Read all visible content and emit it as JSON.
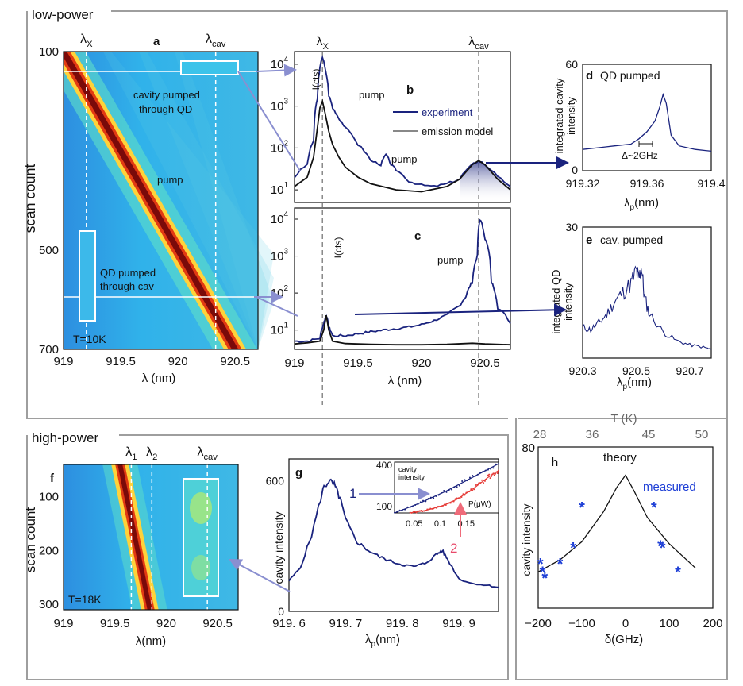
{
  "sections": {
    "low_power": "low-power",
    "high_power": "high-power"
  },
  "colors": {
    "experiment": "#1a237e",
    "model": "#111111",
    "red_series": "#e53935",
    "measured": "#1e3fd6",
    "frame": "#9e9e9e",
    "heat_bg": "#2aa7e6",
    "heat_band": "#7a0a0a",
    "arrow": "#8a8fd0"
  },
  "chart_data": [
    {
      "id": "a",
      "type": "heatmap",
      "panel_letter": "a",
      "xlabel": "λ (nm)",
      "ylabel": "scan count",
      "x_ticks": [
        "919",
        "919.5",
        "920",
        "920.5"
      ],
      "y_ticks": [
        "100",
        "500",
        "700"
      ],
      "xlim": [
        919,
        920.7
      ],
      "ylim": [
        700,
        100
      ],
      "markers": [
        {
          "sym": "λ",
          "sub": "X",
          "x": 919.2
        },
        {
          "sym": "λ",
          "sub": "cav",
          "x": 920.33
        }
      ],
      "annotations": [
        "cavity pumped",
        "through QD",
        "pump",
        "QD pumped",
        "through cav",
        "T=10K"
      ],
      "band": [
        [
          919.0,
          100
        ],
        [
          920.5,
          700
        ]
      ]
    },
    {
      "id": "b",
      "type": "line",
      "panel_letter": "b",
      "yscale": "log",
      "ylabel": "I(cts)",
      "y_ticks": [
        "10",
        "10",
        "10",
        "10"
      ],
      "y_exp": [
        "1",
        "2",
        "3",
        "4"
      ],
      "xlim": [
        919,
        920.7
      ],
      "ylim": [
        5,
        20000
      ],
      "markers": [
        {
          "sym": "λ",
          "sub": "X",
          "x": 919.22
        },
        {
          "sym": "λ",
          "sub": "cav",
          "x": 920.45
        }
      ],
      "annotations": [
        "pump",
        "pump"
      ],
      "legend": [
        "experiment",
        "emission model"
      ],
      "series": [
        {
          "name": "experiment",
          "x": [
            919.0,
            919.1,
            919.15,
            919.18,
            919.2,
            919.22,
            919.24,
            919.27,
            919.3,
            919.35,
            919.4,
            919.5,
            919.6,
            919.68,
            919.72,
            919.76,
            919.8,
            919.9,
            920.0,
            920.1,
            920.2,
            920.3,
            920.4,
            920.45,
            920.5,
            920.6,
            920.7
          ],
          "y": [
            20,
            40,
            150,
            1500,
            8000,
            15000,
            8000,
            1800,
            900,
            500,
            300,
            120,
            50,
            40,
            70,
            40,
            30,
            16,
            13,
            12,
            14,
            18,
            40,
            50,
            40,
            20,
            12
          ]
        },
        {
          "name": "emission model",
          "x": [
            919.0,
            919.1,
            919.15,
            919.18,
            919.2,
            919.22,
            919.24,
            919.27,
            919.3,
            919.35,
            919.4,
            919.5,
            919.6,
            919.8,
            920.0,
            920.2,
            920.3,
            920.4,
            920.45,
            920.5,
            920.6,
            920.7
          ],
          "y": [
            12,
            20,
            60,
            300,
            900,
            1300,
            700,
            250,
            120,
            60,
            35,
            20,
            14,
            10,
            9,
            12,
            18,
            40,
            50,
            40,
            18,
            10
          ]
        }
      ]
    },
    {
      "id": "c",
      "type": "line",
      "panel_letter": "c",
      "yscale": "log",
      "xlabel": "λ (nm)",
      "ylabel": "I(cts)",
      "x_ticks": [
        "919",
        "919.5",
        "920",
        "920.5"
      ],
      "y_ticks": [
        "10",
        "10",
        "10",
        "10"
      ],
      "y_exp": [
        "1",
        "2",
        "3",
        "4"
      ],
      "xlim": [
        919,
        920.7
      ],
      "ylim": [
        3,
        20000
      ],
      "annotations": [
        "pump"
      ],
      "series": [
        {
          "name": "experiment",
          "x": [
            919.0,
            919.1,
            919.2,
            919.23,
            919.25,
            919.27,
            919.3,
            919.4,
            919.5,
            919.6,
            919.7,
            919.8,
            919.9,
            920.0,
            920.1,
            920.2,
            920.3,
            920.35,
            920.4,
            920.44,
            920.46,
            920.5,
            920.55,
            920.6,
            920.7
          ],
          "y": [
            5,
            5,
            6,
            15,
            25,
            12,
            7,
            7,
            8,
            9,
            10,
            11,
            12,
            14,
            18,
            25,
            45,
            80,
            200,
            1000,
            10000,
            3000,
            200,
            40,
            15
          ]
        },
        {
          "name": "emission model",
          "x": [
            919.0,
            919.1,
            919.2,
            919.23,
            919.25,
            919.27,
            919.3,
            919.4,
            919.6,
            919.8,
            920.0,
            920.2,
            920.4,
            920.5,
            920.7
          ],
          "y": [
            4.2,
            4.5,
            5,
            10,
            25,
            10,
            5,
            4.3,
            4.1,
            4.0,
            4.0,
            4.1,
            4.4,
            4.2,
            4.0
          ]
        }
      ]
    },
    {
      "id": "d",
      "type": "line",
      "panel_letter": "d",
      "title": "QD pumped",
      "xlabel": "λ",
      "xlabel_sub": "p",
      "xlabel_unit": "(nm)",
      "ylabel": [
        "integrated cavity",
        "intensity"
      ],
      "x_ticks": [
        "919.32",
        "919.36",
        "919.4"
      ],
      "y_ticks": [
        "0",
        "60"
      ],
      "xlim": [
        919.32,
        919.4
      ],
      "ylim": [
        0,
        60
      ],
      "annotations": [
        "Δ~2GHz"
      ],
      "series": [
        {
          "name": "",
          "x": [
            919.32,
            919.33,
            919.34,
            919.35,
            919.355,
            919.36,
            919.365,
            919.368,
            919.37,
            919.372,
            919.375,
            919.38,
            919.39,
            919.4
          ],
          "y": [
            12,
            13,
            14,
            15,
            18,
            22,
            28,
            36,
            43,
            38,
            20,
            14,
            12,
            11
          ]
        }
      ]
    },
    {
      "id": "e",
      "type": "line",
      "panel_letter": "e",
      "title": "cav. pumped",
      "xlabel": "λ",
      "xlabel_sub": "p",
      "xlabel_unit": "(nm)",
      "ylabel": [
        "integrated QD",
        "intensity"
      ],
      "x_ticks": [
        "920.3",
        "920.5",
        "920.7"
      ],
      "y_ticks": [
        "30"
      ],
      "xlim": [
        920.3,
        920.78
      ],
      "ylim": [
        0,
        30
      ],
      "series": [
        {
          "name": "",
          "x": [
            920.3,
            920.33,
            920.36,
            920.39,
            920.42,
            920.45,
            920.48,
            920.5,
            920.51,
            920.52,
            920.53,
            920.55,
            920.6,
            920.65,
            920.7,
            920.75,
            920.78
          ],
          "y": [
            7,
            6.5,
            8,
            10,
            13,
            15,
            17,
            20,
            18,
            21,
            14,
            10,
            6,
            4,
            3,
            2.5,
            2
          ]
        }
      ]
    },
    {
      "id": "f",
      "type": "heatmap",
      "panel_letter": "f",
      "xlabel": "λ(nm)",
      "ylabel": "scan count",
      "x_ticks": [
        "919",
        "919.5",
        "920",
        "920.5"
      ],
      "y_ticks": [
        "100",
        "200",
        "300"
      ],
      "xlim": [
        919,
        920.7
      ],
      "ylim": [
        310,
        40
      ],
      "markers": [
        {
          "sym": "λ",
          "sub": "1",
          "x": 919.66
        },
        {
          "sym": "λ",
          "sub": "2",
          "x": 919.86
        },
        {
          "sym": "λ",
          "sub": "cav",
          "x": 920.4
        }
      ],
      "annotations": [
        "T=18K"
      ],
      "band": [
        [
          919.55,
          40
        ],
        [
          919.84,
          310
        ]
      ]
    },
    {
      "id": "g",
      "type": "line",
      "panel_letter": "g",
      "xlabel": "λ",
      "xlabel_sub": "p",
      "xlabel_unit": "(nm)",
      "ylabel": "cavity intensity",
      "x_ticks": [
        "919. 6",
        "919. 7",
        "919. 8",
        "919. 9"
      ],
      "y_ticks": [
        "0",
        "600"
      ],
      "xlim": [
        919.6,
        919.97
      ],
      "ylim": [
        0,
        700
      ],
      "series": [
        {
          "name": "",
          "x": [
            919.6,
            919.62,
            919.64,
            919.66,
            919.67,
            919.68,
            919.69,
            919.7,
            919.72,
            919.74,
            919.76,
            919.78,
            919.8,
            919.82,
            919.84,
            919.86,
            919.87,
            919.88,
            919.9,
            919.92,
            919.95,
            919.97
          ],
          "y": [
            140,
            200,
            350,
            560,
            600,
            580,
            520,
            420,
            320,
            280,
            250,
            230,
            215,
            205,
            220,
            260,
            280,
            240,
            150,
            130,
            120,
            110
          ]
        }
      ],
      "inset": {
        "ylabel": [
          "cavity",
          "intensity"
        ],
        "xlabel": "P(μW)",
        "x_ticks": [
          "0.05",
          "0.1",
          "0.15"
        ],
        "y_ticks": [
          "100",
          "400"
        ],
        "xlim": [
          0,
          0.2
        ],
        "ylim": [
          100,
          400
        ],
        "labels": [
          "1",
          "2"
        ],
        "series": [
          {
            "name": "1",
            "x": [
              0,
              0.05,
              0.1,
              0.15,
              0.2
            ],
            "y": [
              100,
              160,
              230,
              310,
              390
            ]
          },
          {
            "name": "2",
            "x": [
              0.03,
              0.06,
              0.09,
              0.12,
              0.15,
              0.18,
              0.2
            ],
            "y": [
              100,
              115,
              140,
              180,
              240,
              310,
              350
            ]
          }
        ]
      }
    },
    {
      "id": "h",
      "type": "scatter",
      "panel_letter": "h",
      "xlabel": "δ(GHz)",
      "ylabel": "cavity intensity",
      "top_axis_label": "T (K)",
      "top_ticks": [
        "28",
        "36",
        "45",
        "50"
      ],
      "x_ticks": [
        "−200",
        "−100",
        "0",
        "100",
        "200"
      ],
      "y_ticks": [
        "80"
      ],
      "xlim": [
        -200,
        200
      ],
      "ylim": [
        0,
        80
      ],
      "annotations": [
        "theory",
        "measured"
      ],
      "theory": {
        "x": [
          -200,
          -150,
          -100,
          -50,
          -20,
          0,
          20,
          50,
          100,
          150,
          160
        ],
        "y": [
          18,
          24,
          33,
          48,
          60,
          66,
          58,
          45,
          32,
          22,
          20
        ]
      },
      "measured": {
        "x": [
          -195,
          -190,
          -185,
          -150,
          -120,
          -100,
          65,
          80,
          85,
          120
        ],
        "y": [
          22,
          18,
          15,
          22,
          30,
          50,
          50,
          31,
          30,
          18
        ]
      }
    }
  ]
}
